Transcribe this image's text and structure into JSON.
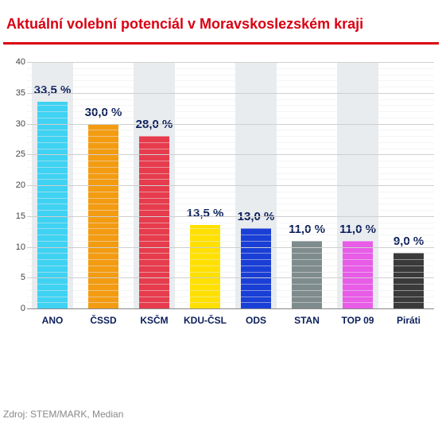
{
  "title": {
    "text": "Aktuální volební potenciál v Moravskoslezském kraji",
    "color": "#d90012",
    "fontsize": 18
  },
  "rule_color": "#d90012",
  "chart": {
    "type": "bar",
    "categories": [
      "ANO",
      "ČSSD",
      "KSČM",
      "KDU-ČSL",
      "ODS",
      "STAN",
      "TOP 09",
      "Piráti"
    ],
    "values": [
      33.5,
      30.0,
      28.0,
      13.5,
      13.0,
      11.0,
      11.0,
      9.0
    ],
    "value_labels": [
      "33,5 %",
      "30,0 %",
      "28,0 %",
      "13,5 %",
      "13,0 %",
      "11,0 %",
      "11,0 %",
      "9,0 %"
    ],
    "bar_colors": [
      "#3fd2f2",
      "#f39c12",
      "#e73c4e",
      "#ffe000",
      "#1a3fd6",
      "#7f8c8d",
      "#e85ce8",
      "#3a3a3a"
    ],
    "ylim": [
      0,
      40
    ],
    "ytick_step": 5,
    "y_minor_step": 1,
    "yticks": [
      0,
      5,
      10,
      15,
      20,
      25,
      30,
      35,
      40
    ],
    "grid_color": "#cfcfcf",
    "minor_grid_color": "#eaeaea",
    "bgstripe_color": "#e9ecef",
    "background_color": "#ffffff",
    "bar_width": 0.58,
    "value_fontsize": 15,
    "value_color": "#0b1f5a",
    "label_fontsize": 12,
    "label_color": "#0b1f5a",
    "axis_color": "#888888"
  },
  "source": "Zdroj: STEM/MARK, Median"
}
